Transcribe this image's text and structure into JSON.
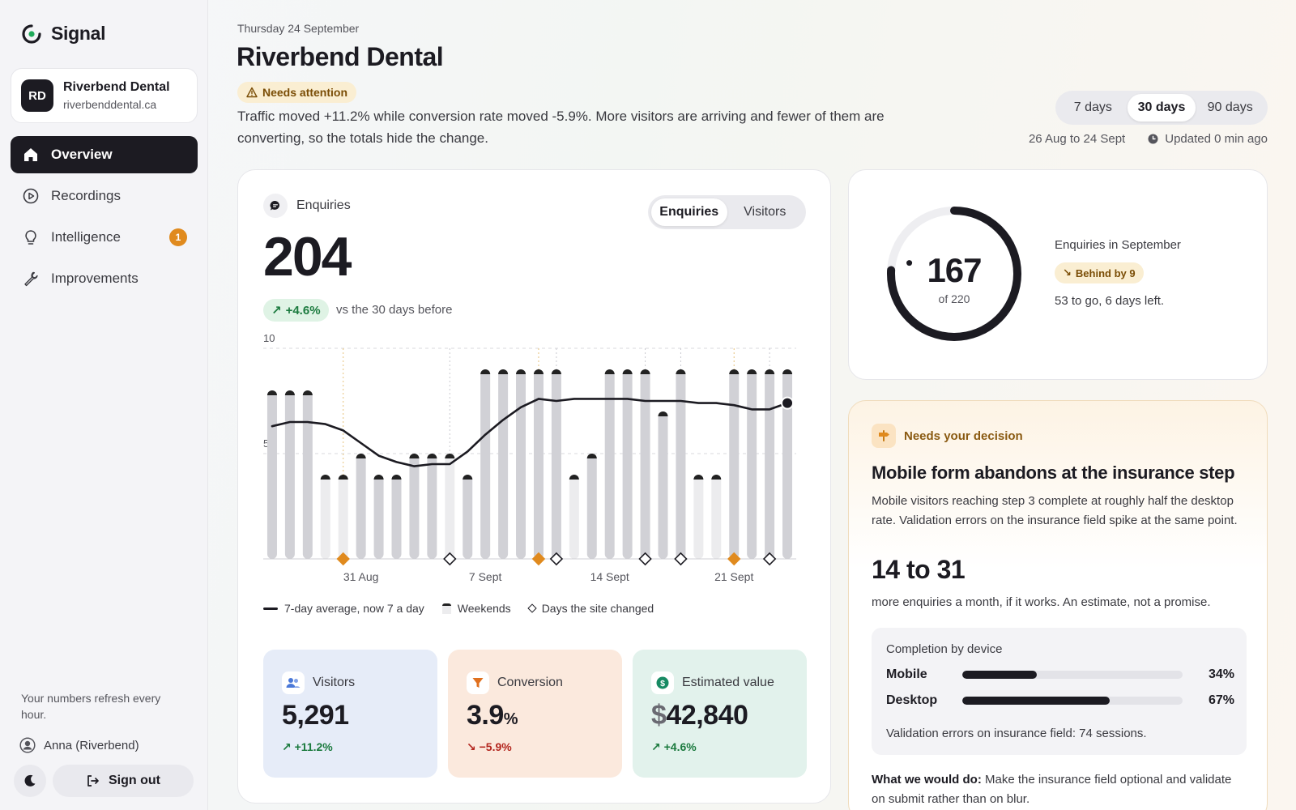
{
  "app": {
    "name": "Signal"
  },
  "account": {
    "initials": "RD",
    "name": "Riverbend Dental",
    "domain": "riverbenddental.ca"
  },
  "nav": [
    {
      "label": "Overview",
      "icon": "home-icon",
      "active": true
    },
    {
      "label": "Recordings",
      "icon": "play-circle-icon"
    },
    {
      "label": "Intelligence",
      "icon": "lightbulb-icon",
      "badge": "1"
    },
    {
      "label": "Improvements",
      "icon": "wrench-icon"
    }
  ],
  "sidebar": {
    "refresh_note": "Your numbers refresh every hour.",
    "user": "Anna (Riverbend)",
    "sign_out": "Sign out"
  },
  "header": {
    "date": "Thursday 24 September",
    "title": "Riverbend Dental",
    "status": "Needs attention",
    "summary": "Traffic moved +11.2% while conversion rate moved -5.9%. More visitors are arriving and fewer of them are converting, so the totals hide the change."
  },
  "range": {
    "options": [
      "7 days",
      "30 days",
      "90 days"
    ],
    "selected": "30 days",
    "dates": "26 Aug to 24 Sept",
    "updated": "Updated 0 min ago"
  },
  "metric": {
    "label": "Enquiries",
    "toggle": [
      "Enquiries",
      "Visitors"
    ],
    "value": "204",
    "delta": "+4.6%",
    "delta_note": "vs the 30 days before"
  },
  "chart_data": {
    "type": "bar",
    "series": [
      {
        "name": "Enquiries",
        "values": [
          8,
          8,
          8,
          4,
          4,
          5,
          4,
          4,
          5,
          5,
          5,
          4,
          9,
          9,
          9,
          9,
          9,
          4,
          5,
          9,
          9,
          9,
          7,
          9,
          4,
          4,
          9,
          9,
          9,
          9
        ]
      },
      {
        "name": "7-day average, now 7 a day",
        "values": [
          6.3,
          6.5,
          6.5,
          6.4,
          6.1,
          5.5,
          4.9,
          4.6,
          4.4,
          4.5,
          4.5,
          5.1,
          5.9,
          6.6,
          7.2,
          7.6,
          7.5,
          7.6,
          7.6,
          7.6,
          7.6,
          7.5,
          7.5,
          7.5,
          7.4,
          7.4,
          7.3,
          7.1,
          7.1,
          7.4
        ]
      }
    ],
    "weekends": [
      3,
      4,
      10,
      17,
      24,
      25
    ],
    "site_changes": [
      {
        "index": 4,
        "kind": "orange"
      },
      {
        "index": 10,
        "kind": "diamond"
      },
      {
        "index": 15,
        "kind": "orange"
      },
      {
        "index": 16,
        "kind": "diamond"
      },
      {
        "index": 21,
        "kind": "diamond"
      },
      {
        "index": 23,
        "kind": "diamond"
      },
      {
        "index": 26,
        "kind": "orange"
      },
      {
        "index": 28,
        "kind": "diamond"
      }
    ],
    "x_ticks": [
      {
        "index": 5,
        "label": "31 Aug"
      },
      {
        "index": 12,
        "label": "7 Sept"
      },
      {
        "index": 19,
        "label": "14 Sept"
      },
      {
        "index": 26,
        "label": "21 Sept"
      }
    ],
    "y_ticks": [
      10,
      5
    ],
    "ylim": [
      0,
      10
    ],
    "legend": [
      "7-day average, now 7 a day",
      "Weekends",
      "Days the site changed"
    ]
  },
  "stats": [
    {
      "label": "Visitors",
      "value": "5,291",
      "delta": "+11.2%",
      "icon": "users-icon",
      "bg": "#e6ecf8",
      "color": "#1b7a3e",
      "arrow": "↗"
    },
    {
      "label": "Conversion",
      "value": "3.9",
      "unit": "%",
      "delta": "−5.9%",
      "icon": "funnel-icon",
      "bg": "#fbe9dd",
      "color": "#b3261e",
      "arrow": "↘"
    },
    {
      "label": "Estimated value",
      "currency": "$",
      "value": "42,840",
      "delta": "+4.6%",
      "icon": "dollar-icon",
      "bg": "#e2f2ec",
      "color": "#1b7a3e",
      "arrow": "↗"
    }
  ],
  "target": {
    "value": "167",
    "of": "of 220",
    "progress": 0.759,
    "label": "Enquiries in September",
    "badge": "Behind by 9",
    "note": "53 to go, 6 days left."
  },
  "decision": {
    "tag": "Needs your decision",
    "title": "Mobile form abandons at the insurance step",
    "body": "Mobile visitors reaching step 3 complete at roughly half the desktop rate. Validation errors on the insurance field spike at the same point.",
    "range": "14 to 31",
    "range_note": "more enquiries a month, if it works. An estimate, not a promise.",
    "device_title": "Completion by device",
    "devices": [
      {
        "name": "Mobile",
        "pct": "34%",
        "value": 0.34
      },
      {
        "name": "Desktop",
        "pct": "67%",
        "value": 0.67
      }
    ],
    "device_note": "Validation errors on insurance field: 74 sessions.",
    "action_label": "What we would do:",
    "action_text": "Make the insurance field optional and validate on submit rather than on blur."
  },
  "colors": {
    "accent": "#1c1b22",
    "orange": "#e08a1e",
    "green": "#1b7a3e",
    "red": "#b3261e"
  }
}
